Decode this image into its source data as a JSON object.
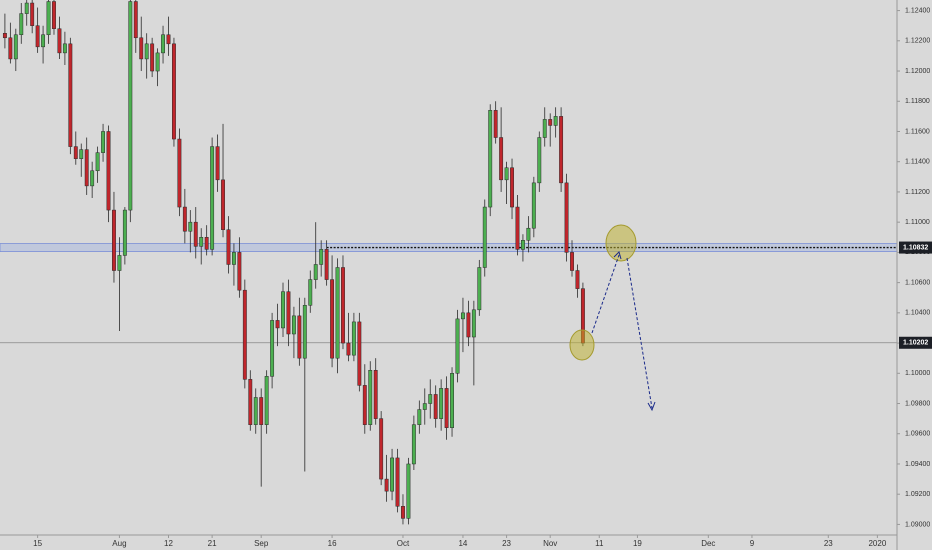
{
  "chart_data": {
    "type": "candlestick",
    "up_color": "#4caf50",
    "down_color": "#c0262c",
    "open": [
      1.1225,
      1.1222,
      1.1208,
      1.1224,
      1.1238,
      1.1245,
      1.123,
      1.1216,
      1.1224,
      1.1246,
      1.1228,
      1.1212,
      1.1218,
      1.115,
      1.1142,
      1.1148,
      1.1124,
      1.1134,
      1.1146,
      1.116,
      1.1108,
      1.1068,
      1.1078,
      1.1108,
      1.1246,
      1.1222,
      1.1208,
      1.1218,
      1.12,
      1.1212,
      1.1224,
      1.1218,
      1.1155,
      1.111,
      1.1094,
      1.11,
      1.1084,
      1.109,
      1.1082,
      1.115,
      1.1128,
      1.1095,
      1.1072,
      1.108,
      1.1055,
      1.0996,
      1.0966,
      1.0984,
      1.0966,
      1.0998,
      1.1035,
      1.103,
      1.1054,
      1.1026,
      1.1038,
      1.101,
      1.1045,
      1.1062,
      1.1072,
      1.1082,
      1.1062,
      1.101,
      1.107,
      1.102,
      1.1012,
      1.1034,
      1.0992,
      1.0966,
      1.1002,
      1.097,
      1.093,
      1.0922,
      1.0944,
      1.0912,
      1.0904,
      1.094,
      1.0966,
      1.0976,
      1.098,
      1.0986,
      1.097,
      1.099,
      1.0964,
      1.1,
      1.1036,
      1.104,
      1.1024,
      1.1042,
      1.107,
      1.111,
      1.1174,
      1.1156,
      1.1128,
      1.1136,
      1.111,
      1.1082,
      1.1088,
      1.1096,
      1.1126,
      1.1156,
      1.1168,
      1.1164,
      1.117,
      1.1126,
      1.108,
      1.1068,
      1.1056
    ],
    "high": [
      1.1238,
      1.1232,
      1.1228,
      1.1245,
      1.125,
      1.125,
      1.1242,
      1.123,
      1.125,
      1.125,
      1.1236,
      1.1226,
      1.1222,
      1.116,
      1.1152,
      1.1156,
      1.114,
      1.115,
      1.1165,
      1.1164,
      1.112,
      1.109,
      1.111,
      1.125,
      1.125,
      1.1236,
      1.1225,
      1.1222,
      1.1215,
      1.123,
      1.1236,
      1.1222,
      1.1162,
      1.1122,
      1.1108,
      1.111,
      1.1096,
      1.1098,
      1.1156,
      1.1158,
      1.1165,
      1.1104,
      1.1086,
      1.109,
      1.1062,
      1.1002,
      1.099,
      1.099,
      1.1002,
      1.104,
      1.1046,
      1.106,
      1.1062,
      1.1044,
      1.105,
      1.105,
      1.1068,
      1.11,
      1.1088,
      1.1088,
      1.1078,
      1.1076,
      1.1078,
      1.104,
      1.104,
      1.104,
      1.1006,
      1.1008,
      1.101,
      1.0975,
      1.0946,
      1.095,
      1.095,
      1.092,
      1.0944,
      1.0972,
      1.0982,
      1.099,
      1.0996,
      1.0992,
      1.0996,
      1.0998,
      1.1004,
      1.1042,
      1.105,
      1.1048,
      1.1048,
      1.1075,
      1.1115,
      1.1178,
      1.118,
      1.1176,
      1.114,
      1.1142,
      1.1118,
      1.1092,
      1.1104,
      1.113,
      1.116,
      1.1176,
      1.1172,
      1.1176,
      1.1176,
      1.1132,
      1.1088,
      1.1072,
      1.106
    ],
    "low": [
      1.1215,
      1.1205,
      1.12,
      1.1218,
      1.123,
      1.1225,
      1.1212,
      1.1205,
      1.1218,
      1.1224,
      1.1208,
      1.1204,
      1.1145,
      1.1138,
      1.113,
      1.1118,
      1.1116,
      1.1126,
      1.114,
      1.11,
      1.106,
      1.1028,
      1.1072,
      1.11,
      1.1212,
      1.12,
      1.1195,
      1.1196,
      1.119,
      1.1205,
      1.121,
      1.115,
      1.1104,
      1.1086,
      1.108,
      1.1076,
      1.1072,
      1.1078,
      1.1078,
      1.112,
      1.109,
      1.1066,
      1.1058,
      1.105,
      1.099,
      1.0962,
      1.096,
      1.0925,
      1.096,
      1.099,
      1.1018,
      1.1024,
      1.1018,
      1.101,
      1.1005,
      1.0935,
      1.104,
      1.1056,
      1.1064,
      1.1058,
      1.1004,
      1.1,
      1.1016,
      1.1008,
      1.1008,
      1.0988,
      1.096,
      1.0962,
      1.0966,
      1.0926,
      1.0915,
      1.0916,
      1.0908,
      1.09,
      1.09,
      1.0936,
      1.096,
      1.0966,
      1.097,
      1.0964,
      1.0962,
      1.0956,
      1.0958,
      1.0994,
      1.1014,
      1.1018,
      1.0992,
      1.1038,
      1.1064,
      1.1104,
      1.1152,
      1.112,
      1.1112,
      1.1102,
      1.1078,
      1.1074,
      1.108,
      1.109,
      1.112,
      1.115,
      1.115,
      1.1156,
      1.112,
      1.1074,
      1.1064,
      1.105,
      1.1018
    ],
    "close": [
      1.1222,
      1.1208,
      1.1224,
      1.1238,
      1.1245,
      1.123,
      1.1216,
      1.1224,
      1.1246,
      1.1228,
      1.1212,
      1.1218,
      1.115,
      1.1142,
      1.1148,
      1.1124,
      1.1134,
      1.1146,
      1.116,
      1.1108,
      1.1068,
      1.1078,
      1.1108,
      1.1246,
      1.1222,
      1.1208,
      1.1218,
      1.12,
      1.1212,
      1.1224,
      1.1218,
      1.1155,
      1.111,
      1.1094,
      1.11,
      1.1084,
      1.109,
      1.1082,
      1.115,
      1.1128,
      1.1095,
      1.1072,
      1.108,
      1.1055,
      1.0996,
      1.0966,
      1.0984,
      1.0966,
      1.0998,
      1.1035,
      1.103,
      1.1054,
      1.1026,
      1.1038,
      1.101,
      1.1045,
      1.1062,
      1.1072,
      1.1082,
      1.1062,
      1.101,
      1.107,
      1.102,
      1.1012,
      1.1034,
      1.0992,
      1.0966,
      1.1002,
      1.097,
      1.093,
      1.0922,
      1.0944,
      1.0912,
      1.0904,
      1.094,
      1.0966,
      1.0976,
      1.098,
      1.0986,
      1.097,
      1.099,
      1.0964,
      1.1,
      1.1036,
      1.104,
      1.1024,
      1.1042,
      1.107,
      1.111,
      1.1174,
      1.1156,
      1.1128,
      1.1136,
      1.111,
      1.1082,
      1.1088,
      1.1096,
      1.1126,
      1.1156,
      1.1168,
      1.1164,
      1.117,
      1.1126,
      1.108,
      1.1068,
      1.1056,
      1.102
    ],
    "xlim": [
      -0.9,
      163.6
    ],
    "xticks": [
      {
        "value": 6,
        "label": "15"
      },
      {
        "value": 21,
        "label": "Aug"
      },
      {
        "value": 30,
        "label": "12"
      },
      {
        "value": 38,
        "label": "21"
      },
      {
        "value": 47,
        "label": "Sep"
      },
      {
        "value": 60,
        "label": "16"
      },
      {
        "value": 73,
        "label": "Oct"
      },
      {
        "value": 84,
        "label": "14"
      },
      {
        "value": 92,
        "label": "23"
      },
      {
        "value": 100,
        "label": "Nov"
      },
      {
        "value": 109,
        "label": "11"
      },
      {
        "value": 116,
        "label": "19"
      },
      {
        "value": 129,
        "label": "Dec"
      },
      {
        "value": 137,
        "label": "9"
      },
      {
        "value": 151,
        "label": "23"
      },
      {
        "value": 160,
        "label": "2020"
      }
    ],
    "ylim": [
      1.0893,
      1.1247
    ],
    "yticks": [
      {
        "value": 1.09,
        "label": "1.09000"
      },
      {
        "value": 1.092,
        "label": "1.09200"
      },
      {
        "value": 1.094,
        "label": "1.09400"
      },
      {
        "value": 1.096,
        "label": "1.09600"
      },
      {
        "value": 1.098,
        "label": "1.09800"
      },
      {
        "value": 1.1,
        "label": "1.10000"
      },
      {
        "value": 1.102,
        "label": "1.10200"
      },
      {
        "value": 1.104,
        "label": "1.10400"
      },
      {
        "value": 1.106,
        "label": "1.10600"
      },
      {
        "value": 1.108,
        "label": "1.10800"
      },
      {
        "value": 1.11,
        "label": "1.11000"
      },
      {
        "value": 1.112,
        "label": "1.11200"
      },
      {
        "value": 1.114,
        "label": "1.11400"
      },
      {
        "value": 1.116,
        "label": "1.11600"
      },
      {
        "value": 1.118,
        "label": "1.11800"
      },
      {
        "value": 1.12,
        "label": "1.12000"
      },
      {
        "value": 1.122,
        "label": "1.12200"
      },
      {
        "value": 1.124,
        "label": "1.12400"
      }
    ],
    "levels": [
      {
        "value": 1.10832,
        "label": "1.10832"
      },
      {
        "value": 1.10202,
        "label": "1.10202"
      }
    ]
  }
}
